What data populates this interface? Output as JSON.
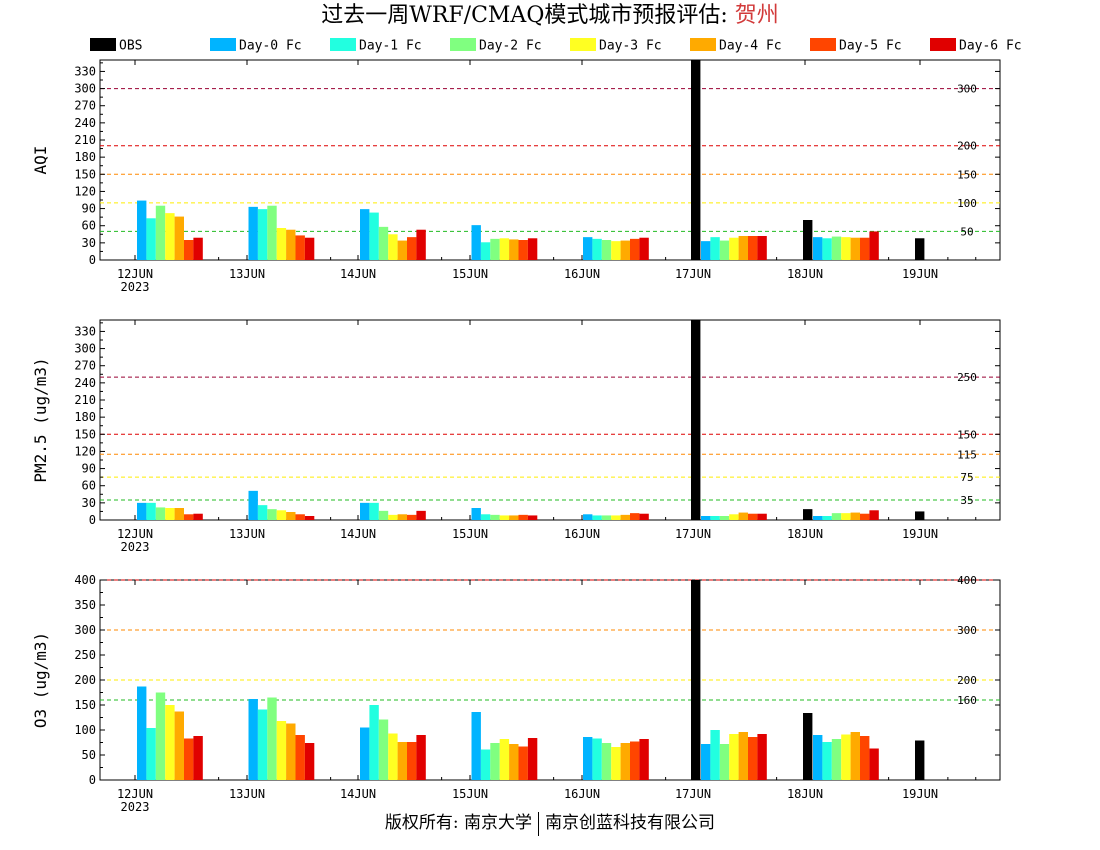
{
  "title": {
    "prefix": "过去一周WRF/CMAQ模式城市预报评估: ",
    "city": "贺州"
  },
  "footer": {
    "left": "版权所有: 南京大学",
    "right": "南京创蓝科技有限公司"
  },
  "colors": {
    "OBS": "#000000",
    "Day-0 Fc": "#00b4ff",
    "Day-1 Fc": "#22ffe0",
    "Day-2 Fc": "#80ff80",
    "Day-3 Fc": "#ffff22",
    "Day-4 Fc": "#ffaa00",
    "Day-5 Fc": "#ff4500",
    "Day-6 Fc": "#e00000"
  },
  "chart_data": [
    {
      "type": "bar",
      "ylabel": "AQI",
      "ylim": [
        0,
        350
      ],
      "yticks": [
        0,
        30,
        60,
        90,
        120,
        150,
        180,
        210,
        240,
        270,
        300,
        330
      ],
      "categories": [
        "12JUN\n2023",
        "13JUN",
        "14JUN",
        "15JUN",
        "16JUN",
        "17JUN",
        "18JUN",
        "19JUN"
      ],
      "legend": [
        "OBS",
        "Day-0 Fc",
        "Day-1 Fc",
        "Day-2 Fc",
        "Day-3 Fc",
        "Day-4 Fc",
        "Day-5 Fc",
        "Day-6 Fc"
      ],
      "thresholds": [
        {
          "value": 50,
          "label": "50",
          "color": "#22bb22"
        },
        {
          "value": 100,
          "label": "100",
          "color": "#ffee00"
        },
        {
          "value": 150,
          "label": "150",
          "color": "#ff8800"
        },
        {
          "value": 200,
          "label": "200",
          "color": "#dd0000"
        },
        {
          "value": 300,
          "label": "300",
          "color": "#990033"
        }
      ],
      "series": [
        {
          "name": "OBS",
          "values": [
            null,
            null,
            null,
            null,
            null,
            350,
            70,
            38
          ]
        },
        {
          "name": "Day-0 Fc",
          "values": [
            104,
            93,
            89,
            61,
            40,
            33,
            40,
            0
          ]
        },
        {
          "name": "Day-1 Fc",
          "values": [
            73,
            89,
            83,
            31,
            37,
            40,
            38,
            0
          ]
        },
        {
          "name": "Day-2 Fc",
          "values": [
            95,
            95,
            58,
            37,
            35,
            34,
            41,
            0
          ]
        },
        {
          "name": "Day-3 Fc",
          "values": [
            82,
            56,
            45,
            38,
            33,
            39,
            40,
            0
          ]
        },
        {
          "name": "Day-4 Fc",
          "values": [
            76,
            53,
            34,
            36,
            34,
            42,
            39,
            0
          ]
        },
        {
          "name": "Day-5 Fc",
          "values": [
            35,
            43,
            40,
            35,
            37,
            42,
            39,
            0
          ]
        },
        {
          "name": "Day-6 Fc",
          "values": [
            39,
            39,
            53,
            38,
            39,
            42,
            50,
            0
          ]
        }
      ]
    },
    {
      "type": "bar",
      "ylabel": "PM2.5 (ug/m3)",
      "ylim": [
        0,
        350
      ],
      "yticks": [
        0,
        30,
        60,
        90,
        120,
        150,
        180,
        210,
        240,
        270,
        300,
        330
      ],
      "categories": [
        "12JUN\n2023",
        "13JUN",
        "14JUN",
        "15JUN",
        "16JUN",
        "17JUN",
        "18JUN",
        "19JUN"
      ],
      "thresholds": [
        {
          "value": 35,
          "label": "35",
          "color": "#22bb22"
        },
        {
          "value": 75,
          "label": "75",
          "color": "#ffee00"
        },
        {
          "value": 115,
          "label": "115",
          "color": "#ff8800"
        },
        {
          "value": 150,
          "label": "150",
          "color": "#dd0000"
        },
        {
          "value": 250,
          "label": "250",
          "color": "#990033"
        }
      ],
      "series": [
        {
          "name": "OBS",
          "values": [
            null,
            null,
            null,
            null,
            null,
            350,
            19,
            15
          ]
        },
        {
          "name": "Day-0 Fc",
          "values": [
            30,
            51,
            30,
            21,
            10,
            7,
            7,
            0
          ]
        },
        {
          "name": "Day-1 Fc",
          "values": [
            30,
            26,
            30,
            10,
            8,
            7,
            7,
            0
          ]
        },
        {
          "name": "Day-2 Fc",
          "values": [
            22,
            19,
            16,
            9,
            8,
            7,
            12,
            0
          ]
        },
        {
          "name": "Day-3 Fc",
          "values": [
            21,
            17,
            9,
            8,
            8,
            10,
            12,
            0
          ]
        },
        {
          "name": "Day-4 Fc",
          "values": [
            21,
            14,
            10,
            8,
            9,
            13,
            13,
            0
          ]
        },
        {
          "name": "Day-5 Fc",
          "values": [
            10,
            10,
            9,
            9,
            12,
            11,
            11,
            0
          ]
        },
        {
          "name": "Day-6 Fc",
          "values": [
            11,
            7,
            16,
            8,
            11,
            11,
            17,
            0
          ]
        }
      ]
    },
    {
      "type": "bar",
      "ylabel": "O3 (ug/m3)",
      "ylim": [
        0,
        400
      ],
      "yticks": [
        0,
        50,
        100,
        150,
        200,
        250,
        300,
        350,
        400
      ],
      "categories": [
        "12JUN\n2023",
        "13JUN",
        "14JUN",
        "15JUN",
        "16JUN",
        "17JUN",
        "18JUN",
        "19JUN"
      ],
      "thresholds": [
        {
          "value": 160,
          "label": "160",
          "color": "#22bb22"
        },
        {
          "value": 200,
          "label": "200",
          "color": "#ffee00"
        },
        {
          "value": 300,
          "label": "300",
          "color": "#ff8800"
        },
        {
          "value": 400,
          "label": "400",
          "color": "#dd0000"
        }
      ],
      "series": [
        {
          "name": "OBS",
          "values": [
            null,
            null,
            null,
            null,
            null,
            400,
            134,
            79
          ]
        },
        {
          "name": "Day-0 Fc",
          "values": [
            187,
            162,
            105,
            136,
            86,
            72,
            90,
            0
          ]
        },
        {
          "name": "Day-1 Fc",
          "values": [
            104,
            141,
            150,
            61,
            83,
            100,
            76,
            0
          ]
        },
        {
          "name": "Day-2 Fc",
          "values": [
            175,
            165,
            121,
            74,
            74,
            72,
            82,
            0
          ]
        },
        {
          "name": "Day-3 Fc",
          "values": [
            150,
            118,
            93,
            82,
            66,
            92,
            91,
            0
          ]
        },
        {
          "name": "Day-4 Fc",
          "values": [
            137,
            113,
            76,
            72,
            74,
            96,
            96,
            0
          ]
        },
        {
          "name": "Day-5 Fc",
          "values": [
            83,
            90,
            76,
            67,
            77,
            86,
            88,
            0
          ]
        },
        {
          "name": "Day-6 Fc",
          "values": [
            88,
            74,
            90,
            84,
            82,
            92,
            63,
            0
          ]
        }
      ]
    }
  ]
}
